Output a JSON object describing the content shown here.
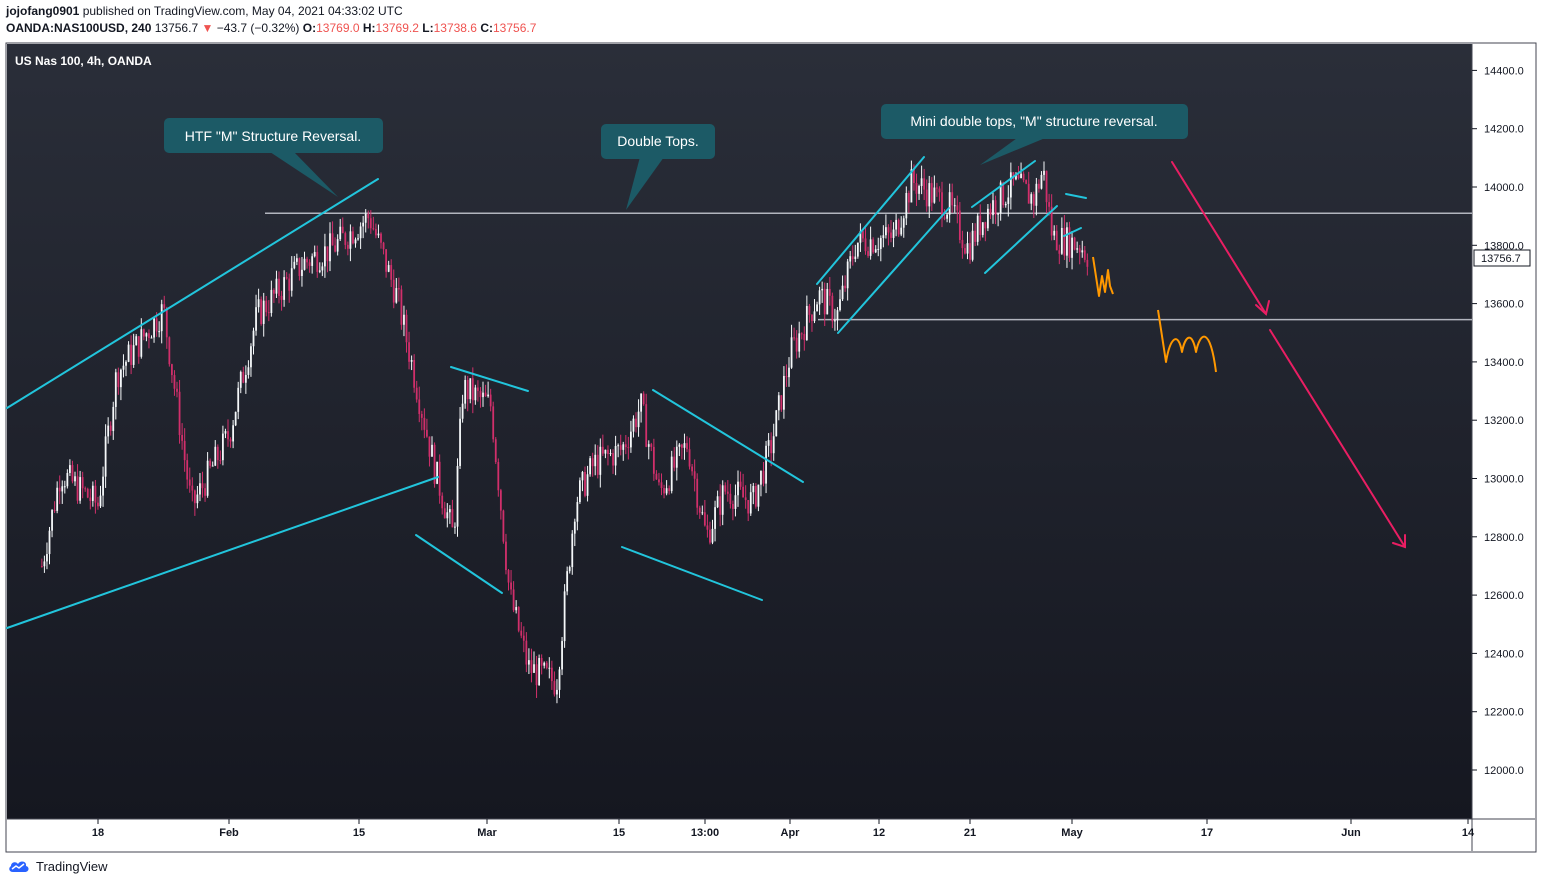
{
  "header": {
    "publisher": "jojofang0901",
    "published_text": "published on TradingView.com, May 04, 2021 04:33:02 UTC",
    "symbol": "OANDA:NAS100USD, 240",
    "last": "13756.7",
    "change_arrow": "▼",
    "change": "−43.7 (−0.32%)",
    "o_label": "O:",
    "o_value": "13769.0",
    "h_label": "H:",
    "h_value": "13769.2",
    "l_label": "L:",
    "l_value": "13738.6",
    "c_label": "C:",
    "c_value": "13756.7"
  },
  "footer": {
    "logo_icon": "tradingview-cloud-icon",
    "brand": "TradingView"
  },
  "chart_data": {
    "type": "candlestick",
    "title": "US Nas 100, 4h, OANDA",
    "last_price_label": "13756.7",
    "y_ticks": [
      "14400.0",
      "14200.0",
      "14000.0",
      "13800.0",
      "13600.0",
      "13400.0",
      "13200.0",
      "13000.0",
      "12800.0",
      "12600.0",
      "12400.0",
      "12200.0",
      "12000.0"
    ],
    "ylim": [
      11870,
      14470
    ],
    "x_ticks": [
      "18",
      "Feb",
      "15",
      "Mar",
      "15",
      "13:00",
      "Apr",
      "12",
      "21",
      "May",
      "17",
      "Jun",
      "14"
    ],
    "series_anchor_close": [
      {
        "date": "2021-01-12",
        "close": 12700
      },
      {
        "date": "2021-01-14",
        "close": 13020
      },
      {
        "date": "2021-01-18",
        "close": 12910
      },
      {
        "date": "2021-01-20",
        "close": 13360
      },
      {
        "date": "2021-01-25",
        "close": 13580
      },
      {
        "date": "2021-01-28",
        "close": 12900
      },
      {
        "date": "2021-02-01",
        "close": 13150
      },
      {
        "date": "2021-02-04",
        "close": 13560
      },
      {
        "date": "2021-02-09",
        "close": 13740
      },
      {
        "date": "2021-02-12",
        "close": 13790
      },
      {
        "date": "2021-02-16",
        "close": 13900
      },
      {
        "date": "2021-02-19",
        "close": 13620
      },
      {
        "date": "2021-02-23",
        "close": 13030
      },
      {
        "date": "2021-02-25",
        "close": 12800
      },
      {
        "date": "2021-02-26",
        "close": 13310
      },
      {
        "date": "2021-03-01",
        "close": 13250
      },
      {
        "date": "2021-03-03",
        "close": 12600
      },
      {
        "date": "2021-03-05",
        "close": 12350
      },
      {
        "date": "2021-03-08",
        "close": 12300
      },
      {
        "date": "2021-03-10",
        "close": 12920
      },
      {
        "date": "2021-03-12",
        "close": 13050
      },
      {
        "date": "2021-03-15",
        "close": 13100
      },
      {
        "date": "2021-03-17",
        "close": 13250
      },
      {
        "date": "2021-03-19",
        "close": 12950
      },
      {
        "date": "2021-03-22",
        "close": 13120
      },
      {
        "date": "2021-03-24",
        "close": 12800
      },
      {
        "date": "2021-03-26",
        "close": 12960
      },
      {
        "date": "2021-03-29",
        "close": 12920
      },
      {
        "date": "2021-03-31",
        "close": 13120
      },
      {
        "date": "2021-04-02",
        "close": 13430
      },
      {
        "date": "2021-04-05",
        "close": 13630
      },
      {
        "date": "2021-04-07",
        "close": 13560
      },
      {
        "date": "2021-04-09",
        "close": 13810
      },
      {
        "date": "2021-04-13",
        "close": 13830
      },
      {
        "date": "2021-04-15",
        "close": 14020
      },
      {
        "date": "2021-04-16",
        "close": 14000
      },
      {
        "date": "2021-04-19",
        "close": 13930
      },
      {
        "date": "2021-04-21",
        "close": 13790
      },
      {
        "date": "2021-04-23",
        "close": 13920
      },
      {
        "date": "2021-04-26",
        "close": 14010
      },
      {
        "date": "2021-04-28",
        "close": 13960
      },
      {
        "date": "2021-04-29",
        "close": 14060
      },
      {
        "date": "2021-04-30",
        "close": 13830
      },
      {
        "date": "2021-05-03",
        "close": 13800
      },
      {
        "date": "2021-05-04",
        "close": 13757
      }
    ],
    "horizontal_levels": [
      13910,
      13545
    ],
    "annotations": [
      {
        "text": "HTF \"M\" Structure Reversal."
      },
      {
        "text": "Double Tops."
      },
      {
        "text": "Mini double tops, \"M\" structure reversal."
      }
    ],
    "colors": {
      "background": "#1e222d",
      "up": "#f5f8fa",
      "down": "#d12f6b",
      "trendline": "#22c5dc",
      "level": "#b2b5be",
      "projection": "#ff9800",
      "arrow": "#e91e63",
      "callout": "#1c5a66",
      "axis_bg": "#ffffff"
    }
  }
}
